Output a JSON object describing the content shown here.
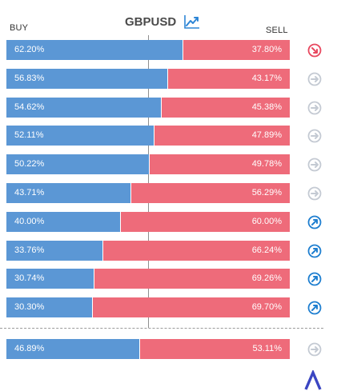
{
  "header": {
    "buy_label": "BUY",
    "sell_label": "SELL",
    "symbol": "GBPUSD",
    "chart_icon": "trend-line-chart-icon"
  },
  "colors": {
    "buy": "#5b97d5",
    "sell": "#ee6b7a",
    "signal_up": "#1f7fd0",
    "signal_down": "#e8485f",
    "signal_neutral": "#c4cad3",
    "logo": "#3b46c2"
  },
  "rows": [
    {
      "buy": "62.20%",
      "sell": "37.80%",
      "buy_fraction": 0.622,
      "signal": "down"
    },
    {
      "buy": "56.83%",
      "sell": "43.17%",
      "buy_fraction": 0.5683,
      "signal": "neutral"
    },
    {
      "buy": "54.62%",
      "sell": "45.38%",
      "buy_fraction": 0.5462,
      "signal": "neutral"
    },
    {
      "buy": "52.11%",
      "sell": "47.89%",
      "buy_fraction": 0.5211,
      "signal": "neutral"
    },
    {
      "buy": "50.22%",
      "sell": "49.78%",
      "buy_fraction": 0.5022,
      "signal": "neutral"
    },
    {
      "buy": "43.71%",
      "sell": "56.29%",
      "buy_fraction": 0.4371,
      "signal": "neutral"
    },
    {
      "buy": "40.00%",
      "sell": "60.00%",
      "buy_fraction": 0.4,
      "signal": "up"
    },
    {
      "buy": "33.76%",
      "sell": "66.24%",
      "buy_fraction": 0.3376,
      "signal": "up"
    },
    {
      "buy": "30.74%",
      "sell": "69.26%",
      "buy_fraction": 0.3074,
      "signal": "up"
    },
    {
      "buy": "30.30%",
      "sell": "69.70%",
      "buy_fraction": 0.303,
      "signal": "up"
    }
  ],
  "summary": {
    "buy": "46.89%",
    "sell": "53.11%",
    "buy_fraction": 0.4689,
    "signal": "neutral"
  },
  "logo_icon": "brand-logo-icon"
}
